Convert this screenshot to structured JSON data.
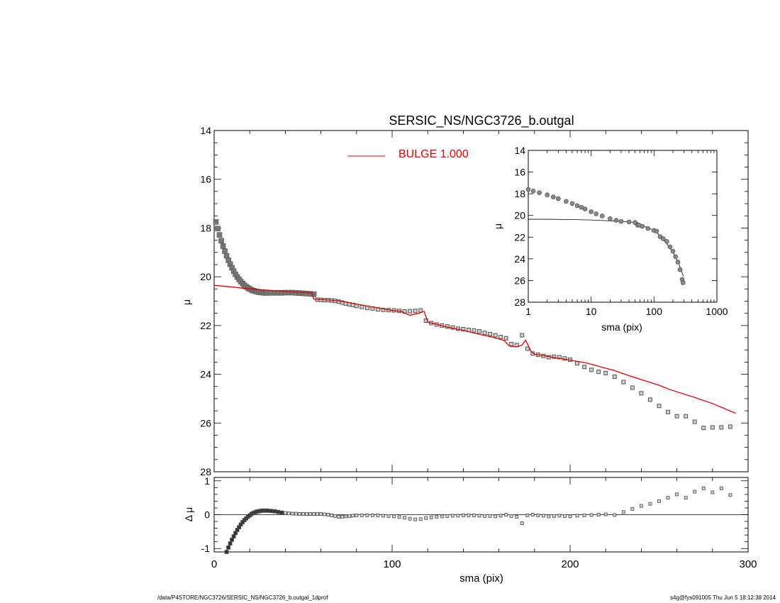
{
  "footer": {
    "path": "/data/P4STORE/NGC3726/SERSIC_NS/NGC3726_b.outgal_1dprof",
    "stamp": "s4g@fys091005  Thu Jun  5 18:12:38 2014"
  },
  "chart_data": [
    {
      "id": "main",
      "type": "scatter",
      "title": "SERSIC_NS/NGC3726_b.outgal",
      "xlabel": "",
      "ylabel": "μ",
      "xlim": [
        0,
        300
      ],
      "ylim": [
        28,
        14
      ],
      "y_inverted": true,
      "yticks": [
        14,
        16,
        18,
        20,
        22,
        24,
        26,
        28
      ],
      "marker_color": "#555555",
      "model_color": "#e00000",
      "legend": {
        "placement": "top-center",
        "entries": [
          {
            "label": "BULGE  1.000",
            "color": "#e00000"
          }
        ]
      },
      "series": [
        {
          "kind": "observed",
          "x": [
            1,
            2,
            3,
            4,
            5,
            6,
            7,
            8,
            9,
            10,
            11,
            12,
            13,
            14,
            15,
            16,
            17,
            18,
            19,
            20,
            21,
            22,
            23,
            24,
            25,
            26,
            27,
            28,
            29,
            30,
            32,
            34,
            36,
            38,
            40,
            42,
            44,
            46,
            48,
            50,
            52,
            54,
            56,
            58,
            60,
            62,
            64,
            66,
            68,
            70,
            72,
            74,
            76,
            78,
            80,
            83,
            86,
            89,
            92,
            95,
            98,
            101,
            104,
            107,
            110,
            113,
            116,
            119,
            122,
            125,
            128,
            131,
            134,
            137,
            140,
            143,
            146,
            149,
            152,
            155,
            158,
            161,
            164,
            167,
            170,
            173,
            176,
            179,
            182,
            185,
            188,
            191,
            194,
            197,
            200,
            204,
            208,
            212,
            216,
            220,
            225,
            230,
            235,
            240,
            245,
            250,
            255,
            260,
            265,
            270,
            275,
            280,
            285,
            290
          ],
          "y": [
            17.75,
            18.02,
            18.28,
            18.52,
            18.74,
            18.95,
            19.14,
            19.32,
            19.48,
            19.63,
            19.77,
            19.9,
            20.01,
            20.11,
            20.2,
            20.28,
            20.35,
            20.41,
            20.46,
            20.5,
            20.54,
            20.57,
            20.59,
            20.61,
            20.63,
            20.64,
            20.65,
            20.66,
            20.66,
            20.66,
            20.66,
            20.66,
            20.66,
            20.66,
            20.65,
            20.65,
            20.65,
            20.66,
            20.67,
            20.68,
            20.69,
            20.7,
            20.72,
            20.94,
            20.95,
            20.96,
            20.96,
            20.97,
            20.99,
            21.02,
            21.06,
            21.1,
            21.13,
            21.16,
            21.2,
            21.24,
            21.28,
            21.3,
            21.34,
            21.36,
            21.37,
            21.38,
            21.4,
            21.42,
            21.41,
            21.4,
            21.38,
            21.8,
            21.9,
            21.96,
            22.0,
            22.04,
            22.08,
            22.13,
            22.15,
            22.18,
            22.2,
            22.24,
            22.3,
            22.35,
            22.4,
            22.47,
            22.52,
            22.76,
            22.8,
            22.4,
            22.95,
            23.15,
            23.2,
            23.25,
            23.3,
            23.28,
            23.3,
            23.35,
            23.4,
            23.55,
            23.7,
            23.82,
            23.9,
            23.95,
            24.1,
            24.32,
            24.55,
            24.78,
            25.04,
            25.3,
            25.55,
            25.72,
            25.72,
            25.95,
            26.2,
            26.18,
            26.18,
            26.15
          ]
        },
        {
          "kind": "model",
          "name": "BULGE  1.000",
          "x": [
            0,
            10,
            20,
            30,
            40,
            50,
            55,
            56,
            60,
            65,
            70,
            75,
            80,
            90,
            100,
            105,
            108,
            110,
            115,
            118,
            120,
            125,
            130,
            140,
            150,
            155,
            160,
            163,
            166,
            170,
            173,
            175,
            178,
            180,
            185,
            190,
            200,
            210,
            220,
            225,
            230,
            240,
            250,
            255,
            260,
            270,
            280,
            293
          ],
          "y": [
            20.35,
            20.42,
            20.5,
            20.55,
            20.6,
            20.64,
            20.66,
            20.92,
            20.93,
            20.96,
            20.99,
            21.05,
            21.12,
            21.25,
            21.38,
            21.42,
            21.52,
            21.58,
            21.5,
            21.42,
            21.86,
            21.95,
            22.05,
            22.2,
            22.38,
            22.45,
            22.55,
            22.62,
            22.85,
            22.88,
            22.8,
            22.6,
            23.05,
            23.18,
            23.23,
            23.3,
            23.42,
            23.55,
            23.75,
            23.85,
            23.98,
            24.22,
            24.45,
            24.6,
            24.72,
            24.95,
            25.2,
            25.6
          ]
        }
      ]
    },
    {
      "id": "inset",
      "type": "scatter",
      "title": "",
      "xlabel": "sma (pix)",
      "ylabel": "μ",
      "x_scale": "log",
      "xlim": [
        1,
        1000
      ],
      "ylim": [
        28,
        14
      ],
      "y_inverted": true,
      "xticks": [
        1,
        10,
        100,
        1000
      ],
      "yticks": [
        14,
        16,
        18,
        20,
        22,
        24,
        26,
        28
      ],
      "series": [
        {
          "kind": "observed",
          "x": [
            1,
            1.2,
            1.5,
            2,
            2.5,
            3,
            4,
            5,
            6,
            7,
            8,
            10,
            12,
            15,
            20,
            25,
            30,
            40,
            50,
            55,
            58,
            65,
            80,
            100,
            110,
            125,
            140,
            160,
            180,
            200,
            220,
            240,
            260,
            280,
            290
          ],
          "y": [
            17.6,
            17.75,
            17.9,
            18.1,
            18.3,
            18.45,
            18.7,
            18.9,
            19.1,
            19.25,
            19.4,
            19.65,
            19.85,
            20.05,
            20.3,
            20.45,
            20.55,
            20.6,
            20.65,
            20.9,
            20.9,
            21.0,
            21.2,
            21.38,
            21.45,
            21.95,
            22.15,
            22.4,
            22.9,
            23.3,
            23.8,
            24.3,
            25.0,
            25.9,
            26.2
          ]
        },
        {
          "kind": "model",
          "x": [
            1,
            2,
            5,
            10,
            20,
            30,
            50,
            55,
            56,
            70,
            100,
            110,
            120,
            150,
            200,
            250,
            293
          ],
          "y": [
            20.35,
            20.35,
            20.38,
            20.42,
            20.5,
            20.55,
            20.64,
            20.66,
            20.92,
            21.0,
            21.38,
            21.55,
            21.8,
            22.4,
            23.4,
            24.5,
            25.6
          ]
        }
      ]
    },
    {
      "id": "residual",
      "type": "scatter",
      "title": "",
      "xlabel": "sma (pix)",
      "ylabel": "Δ μ",
      "xlim": [
        0,
        300
      ],
      "ylim": [
        -1.1,
        1.1
      ],
      "xticks": [
        0,
        100,
        200,
        300
      ],
      "yticks": [
        -1,
        0,
        1
      ],
      "zero_line": true,
      "series": [
        {
          "kind": "observed",
          "x": [
            7,
            8,
            9,
            10,
            11,
            12,
            13,
            14,
            15,
            16,
            17,
            18,
            19,
            20,
            21,
            22,
            23,
            24,
            25,
            26,
            27,
            28,
            29,
            30,
            32,
            34,
            36,
            38,
            40,
            42,
            44,
            46,
            48,
            50,
            52,
            54,
            56,
            58,
            60,
            62,
            64,
            66,
            68,
            70,
            72,
            74,
            76,
            78,
            80,
            83,
            86,
            89,
            92,
            95,
            98,
            101,
            104,
            107,
            110,
            113,
            116,
            119,
            122,
            125,
            128,
            131,
            134,
            137,
            140,
            143,
            146,
            149,
            152,
            155,
            158,
            161,
            164,
            167,
            170,
            173,
            176,
            179,
            182,
            185,
            188,
            191,
            194,
            197,
            200,
            204,
            208,
            212,
            216,
            220,
            225,
            230,
            235,
            240,
            245,
            250,
            255,
            260,
            265,
            270,
            275,
            280,
            285,
            290
          ],
          "y": [
            -1.1,
            -0.97,
            -0.85,
            -0.74,
            -0.64,
            -0.54,
            -0.45,
            -0.37,
            -0.29,
            -0.22,
            -0.16,
            -0.11,
            -0.06,
            -0.02,
            0.02,
            0.05,
            0.07,
            0.09,
            0.1,
            0.11,
            0.12,
            0.12,
            0.12,
            0.12,
            0.11,
            0.1,
            0.08,
            0.06,
            0.05,
            0.04,
            0.03,
            0.03,
            0.02,
            0.02,
            0.02,
            0.02,
            0.02,
            0.02,
            0.02,
            0.01,
            0.0,
            -0.02,
            -0.04,
            -0.06,
            -0.06,
            -0.05,
            -0.04,
            -0.03,
            -0.02,
            -0.02,
            -0.02,
            -0.02,
            -0.02,
            -0.03,
            -0.04,
            -0.05,
            -0.07,
            -0.09,
            -0.12,
            -0.14,
            -0.13,
            -0.1,
            -0.08,
            -0.06,
            -0.05,
            -0.04,
            -0.03,
            -0.03,
            -0.02,
            -0.02,
            -0.02,
            -0.03,
            -0.04,
            -0.04,
            -0.05,
            -0.03,
            0.0,
            -0.04,
            -0.06,
            -0.25,
            -0.02,
            0.0,
            -0.02,
            -0.03,
            -0.05,
            -0.04,
            -0.03,
            -0.04,
            -0.05,
            -0.03,
            -0.02,
            -0.01,
            0.0,
            0.01,
            -0.01,
            0.08,
            0.17,
            0.26,
            0.32,
            0.4,
            0.5,
            0.6,
            0.5,
            0.68,
            0.78,
            0.66,
            0.78,
            0.58
          ]
        }
      ]
    }
  ]
}
